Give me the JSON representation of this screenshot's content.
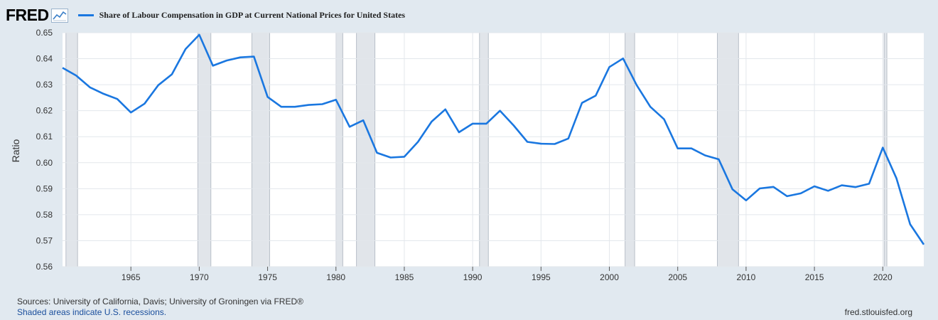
{
  "header": {
    "logo_text": "FRED",
    "logo_icon": "line-chart-icon"
  },
  "chart_data": {
    "type": "line",
    "title": "Share of Labour Compensation in GDP at Current National Prices for United States",
    "xlabel": "",
    "ylabel": "Ratio",
    "ylim": [
      0.56,
      0.65
    ],
    "xlim": [
      1960,
      2023
    ],
    "grid": true,
    "legend_placement": "top-left",
    "line_color": "#1a77e0",
    "y_ticks": [
      0.56,
      0.57,
      0.58,
      0.59,
      0.6,
      0.61,
      0.62,
      0.63,
      0.64,
      0.65
    ],
    "y_tick_labels": [
      "0.56",
      "0.57",
      "0.58",
      "0.59",
      "0.60",
      "0.61",
      "0.62",
      "0.63",
      "0.64",
      "0.65"
    ],
    "x_ticks": [
      1965,
      1970,
      1975,
      1980,
      1985,
      1990,
      1995,
      2000,
      2005,
      2010,
      2015,
      2020
    ],
    "x_tick_labels": [
      "1965",
      "1970",
      "1975",
      "1980",
      "1985",
      "1990",
      "1995",
      "2000",
      "2005",
      "2010",
      "2015",
      "2020"
    ],
    "recessions": [
      [
        1960.25,
        1961.1
      ],
      [
        1969.9,
        1970.85
      ],
      [
        1973.85,
        1975.15
      ],
      [
        1980.0,
        1980.5
      ],
      [
        1981.5,
        1982.85
      ],
      [
        1990.5,
        1991.15
      ],
      [
        2001.15,
        2001.85
      ],
      [
        2007.9,
        2009.45
      ],
      [
        2020.1,
        2020.3
      ]
    ],
    "series": [
      {
        "name": "Share of Labour Compensation in GDP at Current National Prices for United States",
        "x": [
          1960,
          1961,
          1962,
          1963,
          1964,
          1965,
          1966,
          1967,
          1968,
          1969,
          1970,
          1971,
          1972,
          1973,
          1974,
          1975,
          1976,
          1977,
          1978,
          1979,
          1980,
          1981,
          1982,
          1983,
          1984,
          1985,
          1986,
          1987,
          1988,
          1989,
          1990,
          1991,
          1992,
          1993,
          1994,
          1995,
          1996,
          1997,
          1998,
          1999,
          2000,
          2001,
          2002,
          2003,
          2004,
          2005,
          2006,
          2007,
          2008,
          2009,
          2010,
          2011,
          2012,
          2013,
          2014,
          2015,
          2016,
          2017,
          2018,
          2019,
          2020,
          2021,
          2022,
          2023
        ],
        "values": [
          0.6365,
          0.6335,
          0.629,
          0.6265,
          0.6245,
          0.6193,
          0.6227,
          0.6298,
          0.634,
          0.6437,
          0.6492,
          0.6373,
          0.6393,
          0.6405,
          0.6408,
          0.6253,
          0.6215,
          0.6215,
          0.6222,
          0.6225,
          0.6242,
          0.6138,
          0.6163,
          0.6038,
          0.602,
          0.6023,
          0.608,
          0.6158,
          0.6205,
          0.6117,
          0.615,
          0.615,
          0.62,
          0.6143,
          0.608,
          0.6073,
          0.6072,
          0.6093,
          0.623,
          0.6258,
          0.6368,
          0.6401,
          0.6298,
          0.6215,
          0.6167,
          0.6055,
          0.6055,
          0.6028,
          0.6013,
          0.5898,
          0.5855,
          0.5901,
          0.5907,
          0.5871,
          0.5882,
          0.5909,
          0.5892,
          0.5913,
          0.5906,
          0.5919,
          0.6058,
          0.594,
          0.5763,
          0.5685
        ]
      }
    ]
  },
  "footer": {
    "sources": "Sources: University of California, Davis; University of Groningen via FRED®",
    "recession_note": "Shaded areas indicate U.S. recessions.",
    "url": "fred.stlouisfed.org"
  }
}
